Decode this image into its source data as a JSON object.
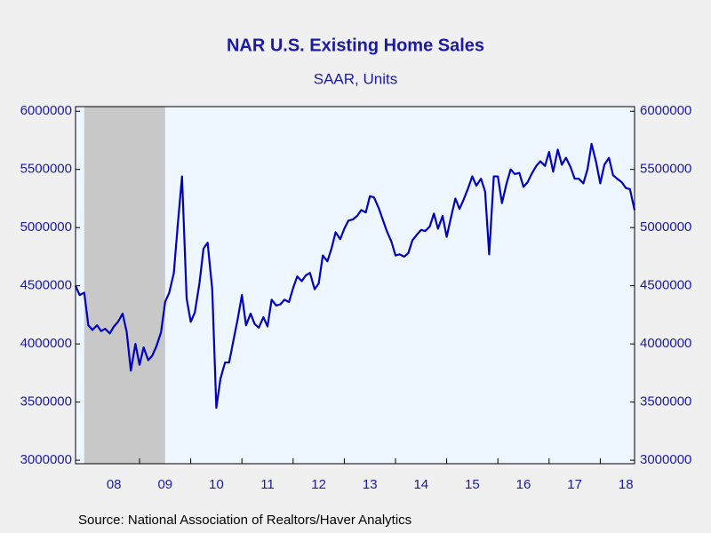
{
  "chart_data": {
    "type": "line",
    "title": "NAR U.S. Existing Home Sales",
    "subtitle": "SAAR, Units",
    "source": "Source:  National Association of Realtors/Haver Analytics",
    "x": [
      2007.75,
      2007.83,
      2007.92,
      2008,
      2008.08,
      2008.17,
      2008.25,
      2008.33,
      2008.42,
      2008.5,
      2008.58,
      2008.67,
      2008.75,
      2008.83,
      2008.92,
      2009,
      2009.08,
      2009.17,
      2009.25,
      2009.33,
      2009.42,
      2009.5,
      2009.58,
      2009.67,
      2009.75,
      2009.83,
      2009.92,
      2010,
      2010.08,
      2010.17,
      2010.25,
      2010.33,
      2010.42,
      2010.5,
      2010.58,
      2010.67,
      2010.75,
      2010.83,
      2010.92,
      2011,
      2011.08,
      2011.17,
      2011.25,
      2011.33,
      2011.42,
      2011.5,
      2011.58,
      2011.67,
      2011.75,
      2011.83,
      2011.92,
      2012,
      2012.08,
      2012.17,
      2012.25,
      2012.33,
      2012.42,
      2012.5,
      2012.58,
      2012.67,
      2012.75,
      2012.83,
      2012.92,
      2013,
      2013.08,
      2013.17,
      2013.25,
      2013.33,
      2013.42,
      2013.5,
      2013.58,
      2013.67,
      2013.75,
      2013.83,
      2013.92,
      2014,
      2014.08,
      2014.17,
      2014.25,
      2014.33,
      2014.42,
      2014.5,
      2014.58,
      2014.67,
      2014.75,
      2014.83,
      2014.92,
      2015,
      2015.08,
      2015.17,
      2015.25,
      2015.33,
      2015.42,
      2015.5,
      2015.58,
      2015.67,
      2015.75,
      2015.83,
      2015.92,
      2016,
      2016.08,
      2016.17,
      2016.25,
      2016.33,
      2016.42,
      2016.5,
      2016.58,
      2016.67,
      2016.75,
      2016.83,
      2016.92,
      2017,
      2017.08,
      2017.17,
      2017.25,
      2017.33,
      2017.42,
      2017.5,
      2017.58,
      2017.67,
      2017.75,
      2017.83,
      2017.92,
      2018,
      2018.08,
      2018.17,
      2018.25,
      2018.33,
      2018.42,
      2018.5,
      2018.58,
      2018.67
    ],
    "series": [
      {
        "color": "#0000c0",
        "values": [
          4500000,
          4420000,
          4440000,
          4160000,
          4120000,
          4160000,
          4110000,
          4130000,
          4090000,
          4150000,
          4190000,
          4260000,
          4100000,
          3770000,
          4000000,
          3820000,
          3970000,
          3860000,
          3900000,
          3980000,
          4100000,
          4360000,
          4440000,
          4610000,
          5040000,
          5440000,
          4390000,
          4190000,
          4270000,
          4520000,
          4820000,
          4870000,
          4470000,
          3450000,
          3700000,
          3840000,
          3840000,
          4020000,
          4220000,
          4420000,
          4160000,
          4260000,
          4170000,
          4140000,
          4230000,
          4150000,
          4380000,
          4330000,
          4340000,
          4380000,
          4360000,
          4480000,
          4580000,
          4540000,
          4590000,
          4610000,
          4470000,
          4520000,
          4760000,
          4710000,
          4820000,
          4960000,
          4900000,
          4990000,
          5060000,
          5070000,
          5100000,
          5150000,
          5130000,
          5270000,
          5260000,
          5170000,
          5070000,
          4970000,
          4880000,
          4760000,
          4770000,
          4750000,
          4780000,
          4890000,
          4940000,
          4980000,
          4970000,
          5010000,
          5120000,
          4990000,
          5100000,
          4920000,
          5080000,
          5250000,
          5160000,
          5240000,
          5340000,
          5440000,
          5360000,
          5420000,
          5310000,
          4770000,
          5440000,
          5440000,
          5210000,
          5380000,
          5500000,
          5460000,
          5470000,
          5350000,
          5390000,
          5470000,
          5530000,
          5570000,
          5530000,
          5650000,
          5480000,
          5670000,
          5540000,
          5600000,
          5520000,
          5420000,
          5420000,
          5380000,
          5500000,
          5720000,
          5560000,
          5380000,
          5540000,
          5600000,
          5450000,
          5420000,
          5390000,
          5340000,
          5330000,
          5150000
        ]
      }
    ],
    "xlim": [
      2007.75,
      2018.67
    ],
    "xticks": [
      {
        "value": 2008.5,
        "label": "08"
      },
      {
        "value": 2009.5,
        "label": "09"
      },
      {
        "value": 2010.5,
        "label": "10"
      },
      {
        "value": 2011.5,
        "label": "11"
      },
      {
        "value": 2012.5,
        "label": "12"
      },
      {
        "value": 2013.5,
        "label": "13"
      },
      {
        "value": 2014.5,
        "label": "14"
      },
      {
        "value": 2015.5,
        "label": "15"
      },
      {
        "value": 2016.5,
        "label": "16"
      },
      {
        "value": 2017.5,
        "label": "17"
      },
      {
        "value": 2018.5,
        "label": "18"
      }
    ],
    "ylim": [
      2970000,
      6040000
    ],
    "yticks": [
      3000000,
      3500000,
      4000000,
      4500000,
      5000000,
      5500000,
      6000000
    ],
    "recession": [
      2007.92,
      2009.5
    ],
    "recession_color": "#c8c8c8",
    "plot_background": "#eef6ff"
  }
}
